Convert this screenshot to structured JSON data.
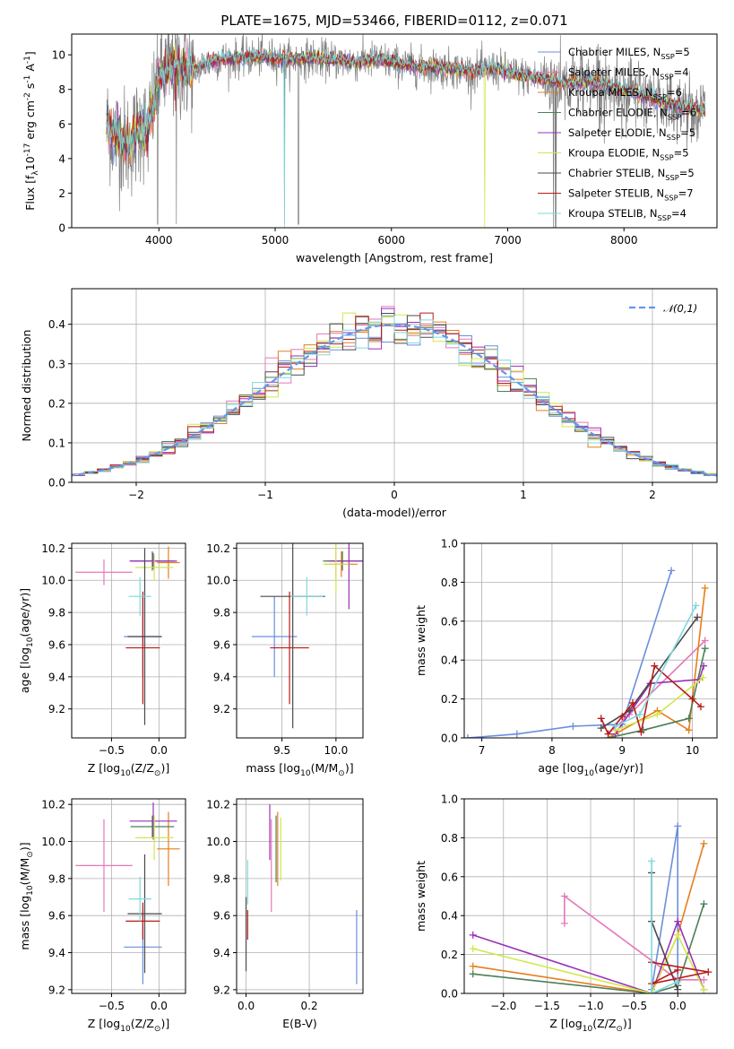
{
  "figure": {
    "title": "PLATE=1675, MJD=53466, FIBERID=0112, z=0.071"
  },
  "series": [
    {
      "name": "Chabrier MILES, N$_{SSP}$=5",
      "color": "#6a8fdd"
    },
    {
      "name": "Salpeter MILES, N$_{SSP}$=4",
      "color": "#e677b8"
    },
    {
      "name": "Kroupa MILES, N$_{SSP}$=6",
      "color": "#e67e1e"
    },
    {
      "name": "Chabrier ELODIE, N$_{SSP}$=6",
      "color": "#4d7f57"
    },
    {
      "name": "Salpeter ELODIE, N$_{SSP}$=5",
      "color": "#9b30b6"
    },
    {
      "name": "Kroupa ELODIE, N$_{SSP}$=5",
      "color": "#cfe84a"
    },
    {
      "name": "Chabrier STELIB, N$_{SSP}$=5",
      "color": "#4a4a4a"
    },
    {
      "name": "Salpeter STELIB, N$_{SSP}$=7",
      "color": "#b81a1a"
    },
    {
      "name": "Kroupa STELIB, N$_{SSP}$=4",
      "color": "#7fd8de"
    }
  ],
  "chart_data": [
    {
      "id": "spectrum",
      "type": "line",
      "xlabel": "wavelength [Angstrom, rest frame]",
      "ylabel": "Flux [f$_\\lambda$10$^{-17}$ erg cm$^{-2}$ s$^{-1}$ A$^{-1}$]",
      "xlim": [
        3250,
        8800
      ],
      "ylim": [
        0,
        11.2
      ],
      "xticks": [
        4000,
        5000,
        6000,
        7000,
        8000
      ],
      "yticks": [
        0,
        2,
        4,
        6,
        8,
        10
      ],
      "data_color": "#808080",
      "continuum": {
        "x": [
          3550,
          3650,
          3750,
          3850,
          3900,
          3950,
          4000,
          4100,
          4200,
          4300,
          4400,
          4500,
          4700,
          4900,
          5100,
          5300,
          5500,
          5700,
          5900,
          6100,
          6300,
          6500,
          6700,
          6900,
          7100,
          7300,
          7500,
          7700,
          7900,
          8100,
          8300,
          8500,
          8700
        ],
        "y": [
          5.9,
          5.2,
          4.8,
          6.0,
          5.4,
          7.1,
          8.8,
          9.2,
          9.3,
          9.1,
          9.5,
          9.7,
          9.8,
          9.9,
          9.7,
          9.8,
          9.7,
          9.6,
          9.7,
          9.4,
          9.3,
          9.2,
          9.0,
          9.2,
          8.8,
          8.6,
          8.3,
          8.5,
          8.1,
          7.8,
          7.3,
          7.0,
          6.8
        ]
      }
    },
    {
      "id": "residuals",
      "type": "histogram",
      "xlabel": "(data-model)/error",
      "ylabel": "Normed distribution",
      "xlim": [
        -2.5,
        2.5
      ],
      "ylim": [
        0,
        0.49
      ],
      "xticks": [
        -2,
        -1,
        0,
        1,
        2
      ],
      "yticks": [
        0.0,
        0.1,
        0.2,
        0.3,
        0.4
      ],
      "bin_width": 0.1,
      "reference": {
        "label": "$\\mathcal{N}(0,1)$",
        "mean": 0,
        "sigma": 1,
        "color": "#6495ed"
      }
    },
    {
      "id": "age-vs-Z",
      "type": "errorbar",
      "xlabel": "Z [log$_{10}$($Z/Z_\\odot$)]",
      "ylabel": "age  [log$_{10}$($age/yr$)]",
      "xlim": [
        -0.92,
        0.28
      ],
      "ylim": [
        9.02,
        10.23
      ],
      "xticks": [
        -0.5,
        0.0
      ],
      "yticks": [
        9.2,
        9.4,
        9.6,
        9.8,
        10.0,
        10.2
      ],
      "points": [
        {
          "x": -0.17,
          "y": 9.65,
          "xerr": 0.2,
          "yerr": 0.25
        },
        {
          "x": -0.58,
          "y": 10.05,
          "xerr": 0.3,
          "yerr": 0.08
        },
        {
          "x": 0.1,
          "y": 10.11,
          "xerr": 0.12,
          "yerr": 0.1
        },
        {
          "x": -0.07,
          "y": 10.12,
          "xerr": 0.23,
          "yerr": 0.06
        },
        {
          "x": -0.06,
          "y": 10.12,
          "xerr": 0.25,
          "yerr": 0.05
        },
        {
          "x": -0.05,
          "y": 10.08,
          "xerr": 0.2,
          "yerr": 0.08
        },
        {
          "x": -0.15,
          "y": 9.65,
          "xerr": 0.18,
          "yerr": 0.55
        },
        {
          "x": -0.17,
          "y": 9.58,
          "xerr": 0.18,
          "yerr": 0.35
        },
        {
          "x": -0.2,
          "y": 9.9,
          "xerr": 0.12,
          "yerr": 0.12
        }
      ]
    },
    {
      "id": "age-vs-mass",
      "type": "errorbar",
      "xlabel": "mass [log$_{10}$($M/M_\\odot$)]",
      "ylabel": "",
      "xlim": [
        9.08,
        10.25
      ],
      "ylim": [
        9.02,
        10.23
      ],
      "xticks": [
        9.5,
        10.0
      ],
      "yticks": [
        9.2,
        9.4,
        9.6,
        9.8,
        10.0,
        10.2
      ],
      "points": [
        {
          "x": 9.43,
          "y": 9.65,
          "xerr": 0.21,
          "yerr": 0.25
        },
        {
          "x": 10.0,
          "y": 10.12,
          "xerr": 0.1,
          "yerr": 0.12
        },
        {
          "x": 10.05,
          "y": 10.1,
          "xerr": 0.15,
          "yerr": 0.08
        },
        {
          "x": 10.06,
          "y": 10.12,
          "xerr": 0.18,
          "yerr": 0.06
        },
        {
          "x": 10.12,
          "y": 10.12,
          "xerr": 0.18,
          "yerr": 0.3
        },
        {
          "x": 10.0,
          "y": 10.1,
          "xerr": 0.12,
          "yerr": 0.18
        },
        {
          "x": 9.6,
          "y": 9.9,
          "xerr": 0.3,
          "yerr": 0.82
        },
        {
          "x": 9.57,
          "y": 9.58,
          "xerr": 0.18,
          "yerr": 0.35
        },
        {
          "x": 9.73,
          "y": 9.9,
          "xerr": 0.15,
          "yerr": 0.12
        }
      ]
    },
    {
      "id": "weight-vs-age",
      "type": "line",
      "xlabel": "age  [log$_{10}$($age/yr$)]",
      "ylabel": "mass weight",
      "xlim": [
        6.75,
        10.35
      ],
      "ylim": [
        0,
        1.0
      ],
      "xticks": [
        7,
        8,
        9,
        10
      ],
      "yticks": [
        0.0,
        0.2,
        0.4,
        0.6,
        0.8,
        1.0
      ],
      "series": [
        {
          "x": [
            6.8,
            7.5,
            8.3,
            9.0,
            9.7
          ],
          "y": [
            0.0,
            0.02,
            0.06,
            0.07,
            0.86
          ]
        },
        {
          "x": [
            8.8,
            9.1,
            10.18
          ],
          "y": [
            0.02,
            0.12,
            0.5
          ]
        },
        {
          "x": [
            8.8,
            9.5,
            9.95,
            10.18
          ],
          "y": [
            0.0,
            0.14,
            0.04,
            0.77
          ]
        },
        {
          "x": [
            8.8,
            9.3,
            9.95,
            10.18
          ],
          "y": [
            0.0,
            0.04,
            0.1,
            0.46
          ]
        },
        {
          "x": [
            8.9,
            9.4,
            10.1,
            10.16
          ],
          "y": [
            0.02,
            0.28,
            0.3,
            0.37
          ]
        },
        {
          "x": [
            8.9,
            9.5,
            10.15
          ],
          "y": [
            0.04,
            0.12,
            0.31
          ]
        },
        {
          "x": [
            8.7,
            9.1,
            10.07
          ],
          "y": [
            0.05,
            0.14,
            0.62
          ]
        },
        {
          "x": [
            8.7,
            8.8,
            9.0,
            9.15,
            9.27,
            9.46,
            10.0,
            10.12
          ],
          "y": [
            0.1,
            0.02,
            0.11,
            0.18,
            0.03,
            0.37,
            0.2,
            0.16
          ]
        },
        {
          "x": [
            8.9,
            9.25,
            10.05
          ],
          "y": [
            0.06,
            0.12,
            0.68
          ]
        }
      ]
    },
    {
      "id": "mass-vs-Z",
      "type": "errorbar",
      "xlabel": "Z [log$_{10}$($Z/Z_\\odot$)]",
      "ylabel": "mass [log$_{10}$($M/M_\\odot$)]",
      "xlim": [
        -0.92,
        0.28
      ],
      "ylim": [
        9.18,
        10.23
      ],
      "xticks": [
        -0.5,
        0.0
      ],
      "yticks": [
        9.2,
        9.4,
        9.6,
        9.8,
        10.0,
        10.2
      ],
      "points": [
        {
          "x": -0.17,
          "y": 9.43,
          "xerr": 0.2,
          "yerr": 0.2
        },
        {
          "x": -0.58,
          "y": 9.87,
          "xerr": 0.3,
          "yerr": 0.25
        },
        {
          "x": 0.1,
          "y": 9.96,
          "xerr": 0.12,
          "yerr": 0.2
        },
        {
          "x": -0.07,
          "y": 10.08,
          "xerr": 0.23,
          "yerr": 0.06
        },
        {
          "x": -0.06,
          "y": 10.11,
          "xerr": 0.25,
          "yerr": 0.1
        },
        {
          "x": -0.05,
          "y": 10.02,
          "xerr": 0.2,
          "yerr": 0.12
        },
        {
          "x": -0.15,
          "y": 9.61,
          "xerr": 0.18,
          "yerr": 0.32
        },
        {
          "x": -0.17,
          "y": 9.57,
          "xerr": 0.18,
          "yerr": 0.1
        },
        {
          "x": -0.2,
          "y": 9.69,
          "xerr": 0.12,
          "yerr": 0.12
        }
      ]
    },
    {
      "id": "mass-vs-EBV",
      "type": "errorbar",
      "xlabel": "E(B-V)",
      "ylabel": "",
      "xlim": [
        -0.03,
        0.37
      ],
      "ylim": [
        9.18,
        10.23
      ],
      "xticks": [
        0.0,
        0.2
      ],
      "yticks": [
        9.2,
        9.4,
        9.6,
        9.8,
        10.0,
        10.2
      ],
      "points": [
        {
          "x": 0.35,
          "y": 9.43,
          "xerr": 0,
          "yerr": 0.2
        },
        {
          "x": 0.08,
          "y": 9.87,
          "xerr": 0,
          "yerr": 0.25
        },
        {
          "x": 0.1,
          "y": 9.96,
          "xerr": 0,
          "yerr": 0.2
        },
        {
          "x": 0.095,
          "y": 9.96,
          "xerr": 0,
          "yerr": 0.18
        },
        {
          "x": 0.075,
          "y": 10.05,
          "xerr": 0,
          "yerr": 0.15
        },
        {
          "x": 0.11,
          "y": 9.96,
          "xerr": 0,
          "yerr": 0.17
        },
        {
          "x": 0.0,
          "y": 9.5,
          "xerr": 0,
          "yerr": 0.2
        },
        {
          "x": 0.005,
          "y": 9.55,
          "xerr": 0,
          "yerr": 0.08
        },
        {
          "x": 0.005,
          "y": 9.78,
          "xerr": 0,
          "yerr": 0.12
        }
      ]
    },
    {
      "id": "weight-vs-Z",
      "type": "line",
      "xlabel": "Z [log$_{10}$($Z/Z_\\odot$)]",
      "ylabel": "mass weight",
      "xlim": [
        -2.45,
        0.45
      ],
      "ylim": [
        0,
        1.0
      ],
      "xticks": [
        -2.0,
        -1.5,
        -1.0,
        -0.5,
        0.0
      ],
      "yticks": [
        0.0,
        0.2,
        0.4,
        0.6,
        0.8,
        1.0
      ],
      "series": [
        {
          "x": [
            -0.3,
            0.0,
            0.0,
            -0.3
          ],
          "y": [
            0.02,
            0.86,
            0.0,
            0.0
          ]
        },
        {
          "x": [
            -1.3,
            -1.3,
            0.0,
            0.3
          ],
          "y": [
            0.36,
            0.5,
            0.07,
            0.07
          ]
        },
        {
          "x": [
            -2.35,
            -0.3,
            0.0,
            0.3
          ],
          "y": [
            0.14,
            0.0,
            0.3,
            0.77
          ]
        },
        {
          "x": [
            -2.35,
            -0.3,
            0.0,
            0.3
          ],
          "y": [
            0.1,
            0.0,
            0.04,
            0.46
          ]
        },
        {
          "x": [
            -2.35,
            -0.3,
            0.0,
            0.3
          ],
          "y": [
            0.3,
            0.0,
            0.37,
            0.02
          ]
        },
        {
          "x": [
            -2.35,
            -0.3,
            0.0,
            0.3
          ],
          "y": [
            0.23,
            0.0,
            0.3,
            0.02
          ]
        },
        {
          "x": [
            -0.3,
            -0.3,
            0.0
          ],
          "y": [
            0.62,
            0.37,
            0.02
          ]
        },
        {
          "x": [
            -0.3,
            0.35,
            -0.3,
            0.0
          ],
          "y": [
            0.16,
            0.11,
            0.05,
            0.12
          ]
        },
        {
          "x": [
            -0.3,
            -0.3,
            0.0
          ],
          "y": [
            0.68,
            0.0,
            0.06
          ]
        }
      ]
    }
  ]
}
